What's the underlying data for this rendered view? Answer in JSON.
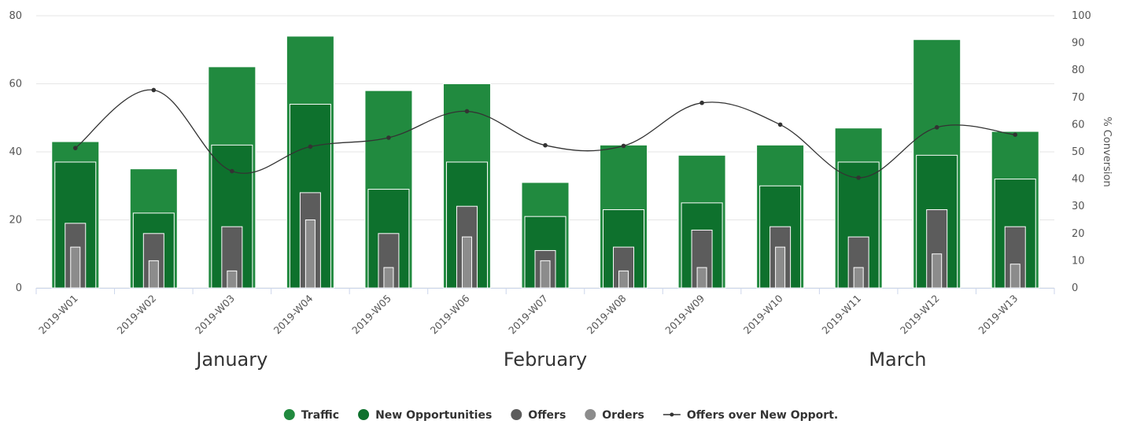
{
  "chart_data": {
    "type": "bar",
    "categories": [
      "2019-W01",
      "2019-W02",
      "2019-W03",
      "2019-W04",
      "2019-W05",
      "2019-W06",
      "2019-W07",
      "2019-W08",
      "2019-W09",
      "2019-W10",
      "2019-W11",
      "2019-W12",
      "2019-W13"
    ],
    "months": [
      {
        "label": "January",
        "from": 0,
        "to": 4
      },
      {
        "label": "February",
        "from": 4,
        "to": 8
      },
      {
        "label": "March",
        "from": 9,
        "to": 12
      }
    ],
    "series": [
      {
        "name": "Traffic",
        "type": "bar",
        "axis": "left",
        "color": "#218a3f",
        "values": [
          43,
          35,
          65,
          74,
          58,
          60,
          31,
          42,
          39,
          42,
          47,
          73,
          46
        ]
      },
      {
        "name": "New Opportunities",
        "type": "bar",
        "axis": "left",
        "color": "#0e712d",
        "values": [
          37,
          22,
          42,
          54,
          29,
          37,
          21,
          23,
          25,
          30,
          37,
          39,
          32
        ]
      },
      {
        "name": "Offers",
        "type": "bar",
        "axis": "left",
        "color": "#5c5c5c",
        "values": [
          19,
          16,
          18,
          28,
          16,
          24,
          11,
          12,
          17,
          18,
          15,
          23,
          18
        ]
      },
      {
        "name": "Orders",
        "type": "bar",
        "axis": "left",
        "color": "#8c8c8c",
        "values": [
          12,
          8,
          5,
          20,
          6,
          15,
          8,
          5,
          6,
          12,
          6,
          10,
          7
        ]
      },
      {
        "name": "Offers over New Opport.",
        "type": "line",
        "axis": "right",
        "color": "#333333",
        "values": [
          51.4,
          72.7,
          42.9,
          51.9,
          55.2,
          64.9,
          52.4,
          52.2,
          68.0,
          60.0,
          40.5,
          59.0,
          56.3
        ]
      }
    ],
    "y_left": {
      "min": 0,
      "max": 80,
      "ticks": [
        0,
        20,
        40,
        60,
        80
      ]
    },
    "y_right": {
      "min": 0,
      "max": 100,
      "ticks": [
        0,
        10,
        20,
        30,
        40,
        50,
        60,
        70,
        80,
        90,
        100
      ],
      "label": "% Conversion"
    },
    "grid": true,
    "legend_position": "bottom-center"
  }
}
